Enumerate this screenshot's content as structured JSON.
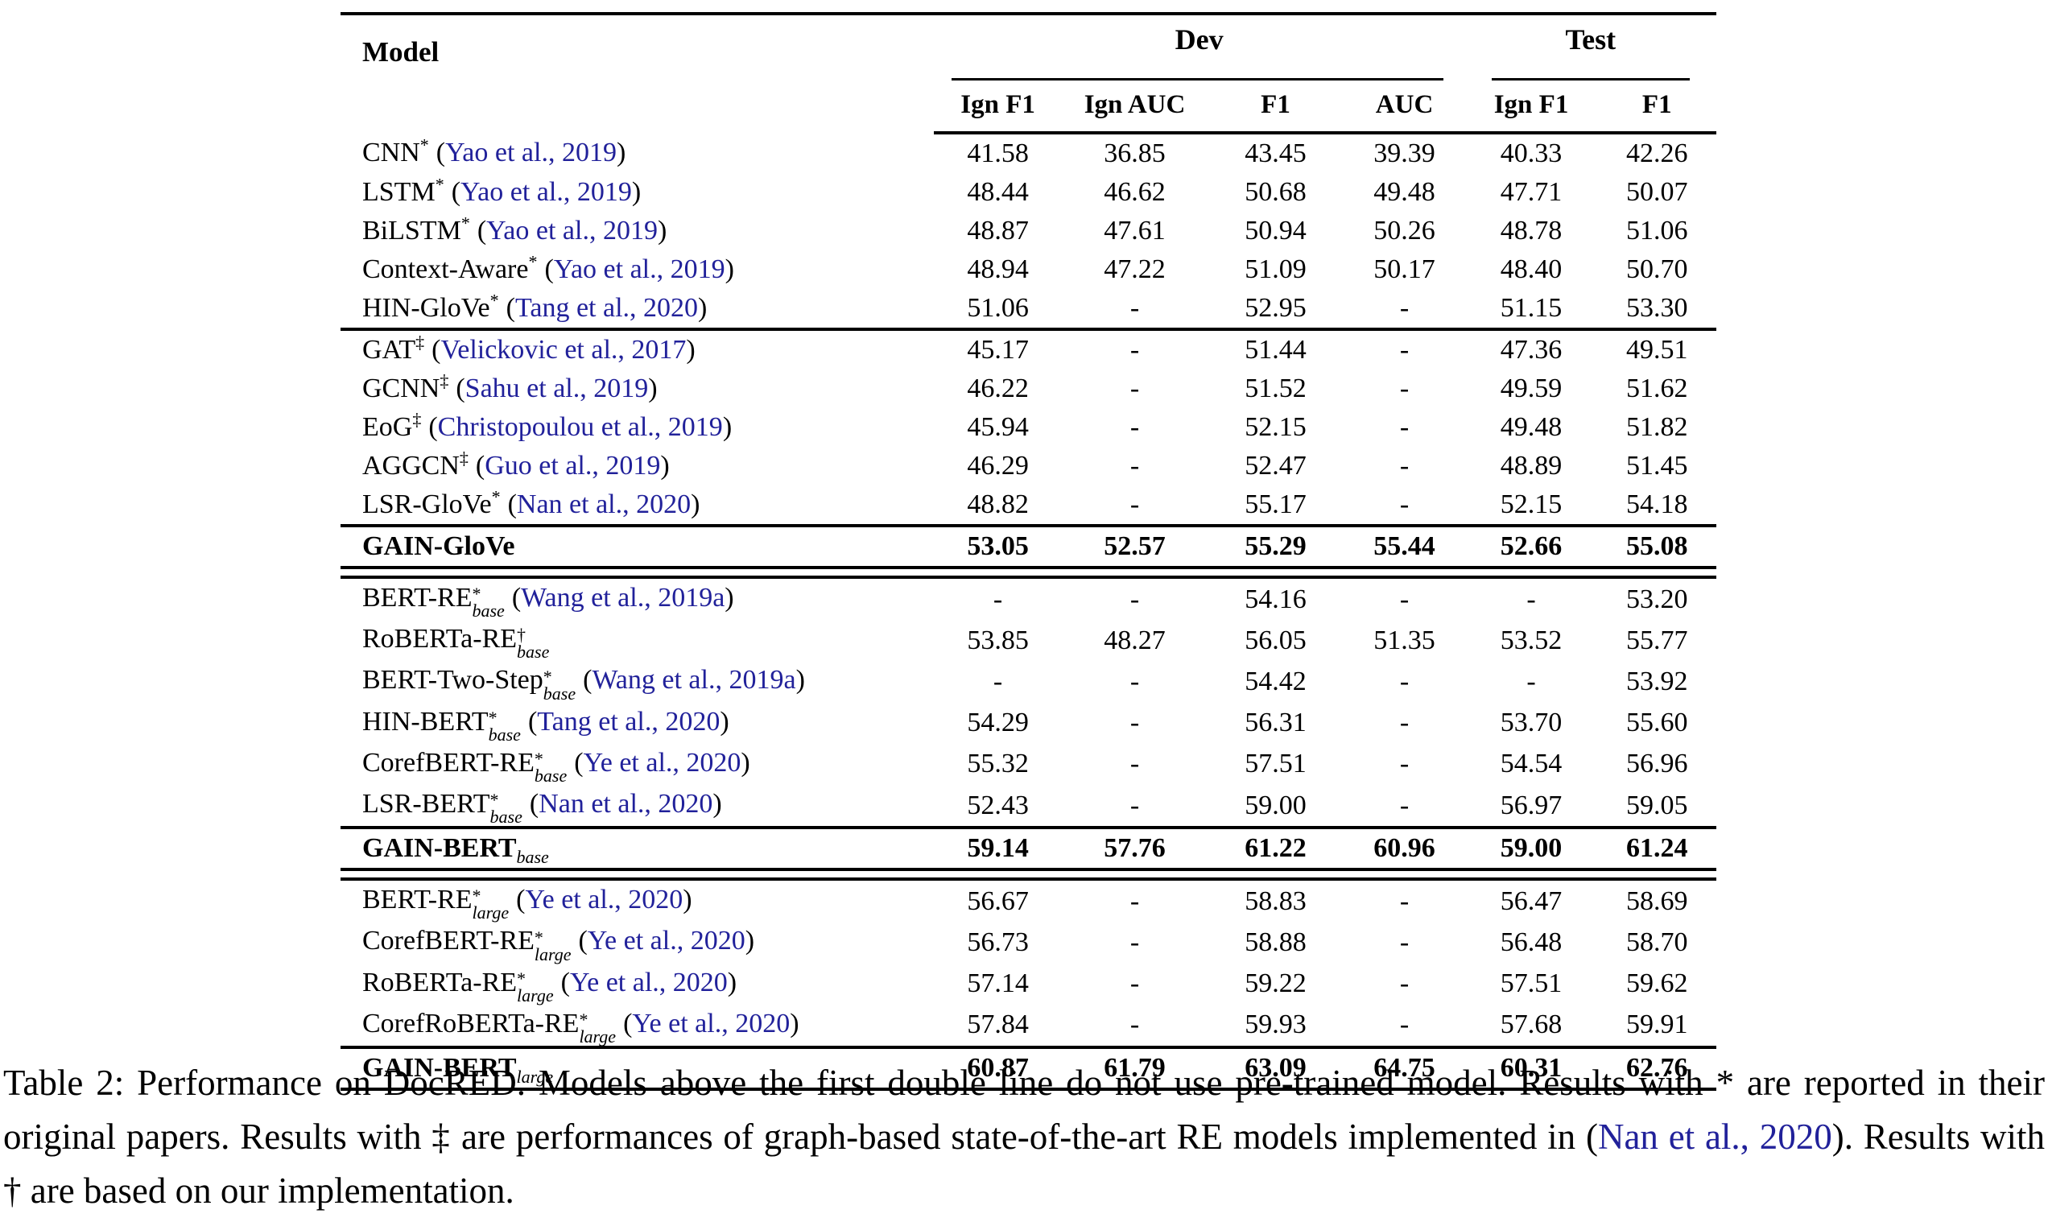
{
  "table": {
    "header": {
      "model_label": "Model",
      "dev_label": "Dev",
      "test_label": "Test",
      "dev_columns": [
        "Ign F1",
        "Ign AUC",
        "F1",
        "AUC"
      ],
      "test_columns": [
        "Ign F1",
        "F1"
      ]
    },
    "groups": [
      {
        "separator_after": "single",
        "rows": [
          {
            "model": "CNN",
            "sup": "*",
            "cite": "Yao et al., 2019",
            "values": [
              "41.58",
              "36.85",
              "43.45",
              "39.39",
              "40.33",
              "42.26"
            ]
          },
          {
            "model": "LSTM",
            "sup": "*",
            "cite": "Yao et al., 2019",
            "values": [
              "48.44",
              "46.62",
              "50.68",
              "49.48",
              "47.71",
              "50.07"
            ]
          },
          {
            "model": "BiLSTM",
            "sup": "*",
            "cite": "Yao et al., 2019",
            "values": [
              "48.87",
              "47.61",
              "50.94",
              "50.26",
              "48.78",
              "51.06"
            ]
          },
          {
            "model": "Context-Aware",
            "sup": "*",
            "cite": "Yao et al., 2019",
            "values": [
              "48.94",
              "47.22",
              "51.09",
              "50.17",
              "48.40",
              "50.70"
            ]
          },
          {
            "model": "HIN-GloVe",
            "sup": "*",
            "cite": "Tang et al., 2020",
            "values": [
              "51.06",
              "-",
              "52.95",
              "-",
              "51.15",
              "53.30"
            ]
          }
        ]
      },
      {
        "separator_after": "single",
        "rows": [
          {
            "model": "GAT",
            "sup": "‡",
            "cite": "Velickovic et al., 2017",
            "values": [
              "45.17",
              "-",
              "51.44",
              "-",
              "47.36",
              "49.51"
            ]
          },
          {
            "model": "GCNN",
            "sup": "‡",
            "cite": "Sahu et al., 2019",
            "values": [
              "46.22",
              "-",
              "51.52",
              "-",
              "49.59",
              "51.62"
            ]
          },
          {
            "model": "EoG",
            "sup": "‡",
            "cite": "Christopoulou et al., 2019",
            "values": [
              "45.94",
              "-",
              "52.15",
              "-",
              "49.48",
              "51.82"
            ]
          },
          {
            "model": "AGGCN",
            "sup": "‡",
            "cite": "Guo et al., 2019",
            "values": [
              "46.29",
              "-",
              "52.47",
              "-",
              "48.89",
              "51.45"
            ]
          },
          {
            "model": "LSR-GloVe",
            "sup": "*",
            "cite": "Nan et al., 2020",
            "values": [
              "48.82",
              "-",
              "55.17",
              "-",
              "52.15",
              "54.18"
            ]
          }
        ]
      },
      {
        "separator_after": "double",
        "rows": [
          {
            "model": "GAIN-GloVe",
            "bold": true,
            "values": [
              "53.05",
              "52.57",
              "55.29",
              "55.44",
              "52.66",
              "55.08"
            ]
          }
        ]
      },
      {
        "separator_after": "single",
        "rows": [
          {
            "model": "BERT-RE",
            "sup": "*",
            "sub": "base",
            "cite": "Wang et al., 2019a",
            "values": [
              "-",
              "-",
              "54.16",
              "-",
              "-",
              "53.20"
            ]
          },
          {
            "model": "RoBERTa-RE",
            "sup": "†",
            "sub": "base",
            "values": [
              "53.85",
              "48.27",
              "56.05",
              "51.35",
              "53.52",
              "55.77"
            ]
          },
          {
            "model": "BERT-Two-Step",
            "sup": "*",
            "sub": "base",
            "cite": "Wang et al., 2019a",
            "values": [
              "-",
              "-",
              "54.42",
              "-",
              "-",
              "53.92"
            ]
          },
          {
            "model": "HIN-BERT",
            "sup": "*",
            "sub": "base",
            "cite": "Tang et al., 2020",
            "values": [
              "54.29",
              "-",
              "56.31",
              "-",
              "53.70",
              "55.60"
            ]
          },
          {
            "model": "CorefBERT-RE",
            "sup": "*",
            "sub": "base",
            "cite": "Ye et al., 2020",
            "values": [
              "55.32",
              "-",
              "57.51",
              "-",
              "54.54",
              "56.96"
            ]
          },
          {
            "model": "LSR-BERT",
            "sup": "*",
            "sub": "base",
            "cite": "Nan et al., 2020",
            "values": [
              "52.43",
              "-",
              "59.00",
              "-",
              "56.97",
              "59.05"
            ]
          }
        ]
      },
      {
        "separator_after": "double",
        "rows": [
          {
            "model": "GAIN-BERT",
            "sub": "base",
            "bold": true,
            "values": [
              "59.14",
              "57.76",
              "61.22",
              "60.96",
              "59.00",
              "61.24"
            ]
          }
        ]
      },
      {
        "separator_after": "single",
        "rows": [
          {
            "model": "BERT-RE",
            "sup": "*",
            "sub": "large",
            "cite": "Ye et al., 2020",
            "values": [
              "56.67",
              "-",
              "58.83",
              "-",
              "56.47",
              "58.69"
            ]
          },
          {
            "model": "CorefBERT-RE",
            "sup": "*",
            "sub": "large",
            "cite": "Ye et al., 2020",
            "values": [
              "56.73",
              "-",
              "58.88",
              "-",
              "56.48",
              "58.70"
            ]
          },
          {
            "model": "RoBERTa-RE",
            "sup": "*",
            "sub": "large",
            "cite": "Ye et al., 2020",
            "values": [
              "57.14",
              "-",
              "59.22",
              "-",
              "57.51",
              "59.62"
            ]
          },
          {
            "model": "CorefRoBERTa-RE",
            "sup": "*",
            "sub": "large",
            "cite": "Ye et al., 2020",
            "values": [
              "57.84",
              "-",
              "59.93",
              "-",
              "57.68",
              "59.91"
            ]
          }
        ]
      },
      {
        "separator_after": "single",
        "rows": [
          {
            "model": "GAIN-BERT",
            "sub": "large",
            "bold": true,
            "values": [
              "60.87",
              "61.79",
              "63.09",
              "64.75",
              "60.31",
              "62.76"
            ]
          }
        ]
      }
    ]
  },
  "caption": {
    "part1": "Table 2: Performance on DocRED. Models above the first double line do not use pre-trained model. Results with * are reported in their original papers. Results with ‡ are performances of graph-based state-of-the-art RE models implemented in (",
    "link": "Nan et al., 2020",
    "part2": "). Results with † are based on our implementation."
  },
  "colors": {
    "link_navy": "#21219a",
    "rule_black": "#000000"
  }
}
